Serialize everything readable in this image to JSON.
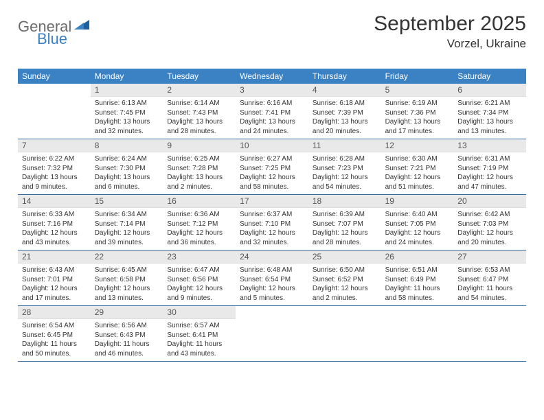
{
  "logo": {
    "gray": "General",
    "blue": "Blue"
  },
  "header": {
    "title": "September 2025",
    "location": "Vorzel, Ukraine"
  },
  "colors": {
    "header_bg": "#3b82c4",
    "rule": "#2f6aa3",
    "num_bg": "#e9e9e9",
    "logo_gray": "#6b6b6b",
    "logo_blue": "#3b7fc4"
  },
  "dayNames": [
    "Sunday",
    "Monday",
    "Tuesday",
    "Wednesday",
    "Thursday",
    "Friday",
    "Saturday"
  ],
  "weeks": [
    [
      {
        "n": "",
        "sunrise": "",
        "sunset": "",
        "daylight": ""
      },
      {
        "n": "1",
        "sunrise": "Sunrise: 6:13 AM",
        "sunset": "Sunset: 7:45 PM",
        "daylight": "Daylight: 13 hours and 32 minutes."
      },
      {
        "n": "2",
        "sunrise": "Sunrise: 6:14 AM",
        "sunset": "Sunset: 7:43 PM",
        "daylight": "Daylight: 13 hours and 28 minutes."
      },
      {
        "n": "3",
        "sunrise": "Sunrise: 6:16 AM",
        "sunset": "Sunset: 7:41 PM",
        "daylight": "Daylight: 13 hours and 24 minutes."
      },
      {
        "n": "4",
        "sunrise": "Sunrise: 6:18 AM",
        "sunset": "Sunset: 7:39 PM",
        "daylight": "Daylight: 13 hours and 20 minutes."
      },
      {
        "n": "5",
        "sunrise": "Sunrise: 6:19 AM",
        "sunset": "Sunset: 7:36 PM",
        "daylight": "Daylight: 13 hours and 17 minutes."
      },
      {
        "n": "6",
        "sunrise": "Sunrise: 6:21 AM",
        "sunset": "Sunset: 7:34 PM",
        "daylight": "Daylight: 13 hours and 13 minutes."
      }
    ],
    [
      {
        "n": "7",
        "sunrise": "Sunrise: 6:22 AM",
        "sunset": "Sunset: 7:32 PM",
        "daylight": "Daylight: 13 hours and 9 minutes."
      },
      {
        "n": "8",
        "sunrise": "Sunrise: 6:24 AM",
        "sunset": "Sunset: 7:30 PM",
        "daylight": "Daylight: 13 hours and 6 minutes."
      },
      {
        "n": "9",
        "sunrise": "Sunrise: 6:25 AM",
        "sunset": "Sunset: 7:28 PM",
        "daylight": "Daylight: 13 hours and 2 minutes."
      },
      {
        "n": "10",
        "sunrise": "Sunrise: 6:27 AM",
        "sunset": "Sunset: 7:25 PM",
        "daylight": "Daylight: 12 hours and 58 minutes."
      },
      {
        "n": "11",
        "sunrise": "Sunrise: 6:28 AM",
        "sunset": "Sunset: 7:23 PM",
        "daylight": "Daylight: 12 hours and 54 minutes."
      },
      {
        "n": "12",
        "sunrise": "Sunrise: 6:30 AM",
        "sunset": "Sunset: 7:21 PM",
        "daylight": "Daylight: 12 hours and 51 minutes."
      },
      {
        "n": "13",
        "sunrise": "Sunrise: 6:31 AM",
        "sunset": "Sunset: 7:19 PM",
        "daylight": "Daylight: 12 hours and 47 minutes."
      }
    ],
    [
      {
        "n": "14",
        "sunrise": "Sunrise: 6:33 AM",
        "sunset": "Sunset: 7:16 PM",
        "daylight": "Daylight: 12 hours and 43 minutes."
      },
      {
        "n": "15",
        "sunrise": "Sunrise: 6:34 AM",
        "sunset": "Sunset: 7:14 PM",
        "daylight": "Daylight: 12 hours and 39 minutes."
      },
      {
        "n": "16",
        "sunrise": "Sunrise: 6:36 AM",
        "sunset": "Sunset: 7:12 PM",
        "daylight": "Daylight: 12 hours and 36 minutes."
      },
      {
        "n": "17",
        "sunrise": "Sunrise: 6:37 AM",
        "sunset": "Sunset: 7:10 PM",
        "daylight": "Daylight: 12 hours and 32 minutes."
      },
      {
        "n": "18",
        "sunrise": "Sunrise: 6:39 AM",
        "sunset": "Sunset: 7:07 PM",
        "daylight": "Daylight: 12 hours and 28 minutes."
      },
      {
        "n": "19",
        "sunrise": "Sunrise: 6:40 AM",
        "sunset": "Sunset: 7:05 PM",
        "daylight": "Daylight: 12 hours and 24 minutes."
      },
      {
        "n": "20",
        "sunrise": "Sunrise: 6:42 AM",
        "sunset": "Sunset: 7:03 PM",
        "daylight": "Daylight: 12 hours and 20 minutes."
      }
    ],
    [
      {
        "n": "21",
        "sunrise": "Sunrise: 6:43 AM",
        "sunset": "Sunset: 7:01 PM",
        "daylight": "Daylight: 12 hours and 17 minutes."
      },
      {
        "n": "22",
        "sunrise": "Sunrise: 6:45 AM",
        "sunset": "Sunset: 6:58 PM",
        "daylight": "Daylight: 12 hours and 13 minutes."
      },
      {
        "n": "23",
        "sunrise": "Sunrise: 6:47 AM",
        "sunset": "Sunset: 6:56 PM",
        "daylight": "Daylight: 12 hours and 9 minutes."
      },
      {
        "n": "24",
        "sunrise": "Sunrise: 6:48 AM",
        "sunset": "Sunset: 6:54 PM",
        "daylight": "Daylight: 12 hours and 5 minutes."
      },
      {
        "n": "25",
        "sunrise": "Sunrise: 6:50 AM",
        "sunset": "Sunset: 6:52 PM",
        "daylight": "Daylight: 12 hours and 2 minutes."
      },
      {
        "n": "26",
        "sunrise": "Sunrise: 6:51 AM",
        "sunset": "Sunset: 6:49 PM",
        "daylight": "Daylight: 11 hours and 58 minutes."
      },
      {
        "n": "27",
        "sunrise": "Sunrise: 6:53 AM",
        "sunset": "Sunset: 6:47 PM",
        "daylight": "Daylight: 11 hours and 54 minutes."
      }
    ],
    [
      {
        "n": "28",
        "sunrise": "Sunrise: 6:54 AM",
        "sunset": "Sunset: 6:45 PM",
        "daylight": "Daylight: 11 hours and 50 minutes."
      },
      {
        "n": "29",
        "sunrise": "Sunrise: 6:56 AM",
        "sunset": "Sunset: 6:43 PM",
        "daylight": "Daylight: 11 hours and 46 minutes."
      },
      {
        "n": "30",
        "sunrise": "Sunrise: 6:57 AM",
        "sunset": "Sunset: 6:41 PM",
        "daylight": "Daylight: 11 hours and 43 minutes."
      },
      {
        "n": "",
        "sunrise": "",
        "sunset": "",
        "daylight": ""
      },
      {
        "n": "",
        "sunrise": "",
        "sunset": "",
        "daylight": ""
      },
      {
        "n": "",
        "sunrise": "",
        "sunset": "",
        "daylight": ""
      },
      {
        "n": "",
        "sunrise": "",
        "sunset": "",
        "daylight": ""
      }
    ]
  ]
}
